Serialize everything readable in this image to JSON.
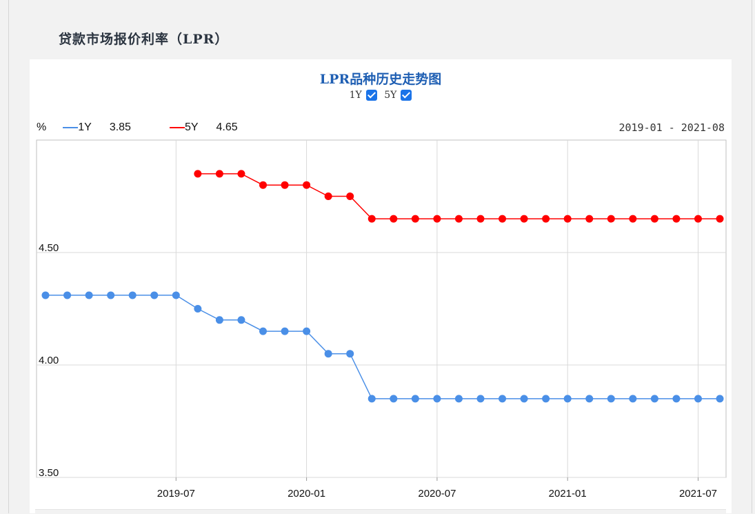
{
  "page": {
    "section_title": "贷款市场报价利率（LPR）"
  },
  "chart_header": {
    "title": "LPR品种历史走势图",
    "toggles": [
      {
        "label": "1Y",
        "checked": true
      },
      {
        "label": "5Y",
        "checked": true
      }
    ],
    "unit": "%",
    "legend": [
      {
        "name": "1Y",
        "value": "3.85",
        "color": "#4a8fe7"
      },
      {
        "name": "5Y",
        "value": "4.65",
        "color": "#ff0000"
      }
    ],
    "range": "2019-01 - 2021-08"
  },
  "chart_data": {
    "type": "line",
    "ylim": [
      3.5,
      5.0
    ],
    "yticks": [
      "3.50",
      "4.00",
      "4.50"
    ],
    "xticks": [
      "2019-07",
      "2020-01",
      "2020-07",
      "2021-01",
      "2021-07"
    ],
    "x": [
      "2019-01",
      "2019-02",
      "2019-03",
      "2019-04",
      "2019-05",
      "2019-06",
      "2019-07",
      "2019-08",
      "2019-09",
      "2019-10",
      "2019-11",
      "2019-12",
      "2020-01",
      "2020-02",
      "2020-03",
      "2020-04",
      "2020-05",
      "2020-06",
      "2020-07",
      "2020-08",
      "2020-09",
      "2020-10",
      "2020-11",
      "2020-12",
      "2021-01",
      "2021-02",
      "2021-03",
      "2021-04",
      "2021-05",
      "2021-06",
      "2021-07",
      "2021-08"
    ],
    "grid": true,
    "series": [
      {
        "name": "1Y",
        "color": "#4a8fe7",
        "values": [
          4.31,
          4.31,
          4.31,
          4.31,
          4.31,
          4.31,
          4.31,
          4.25,
          4.2,
          4.2,
          4.15,
          4.15,
          4.15,
          4.05,
          4.05,
          3.85,
          3.85,
          3.85,
          3.85,
          3.85,
          3.85,
          3.85,
          3.85,
          3.85,
          3.85,
          3.85,
          3.85,
          3.85,
          3.85,
          3.85,
          3.85,
          3.85
        ]
      },
      {
        "name": "5Y",
        "color": "#ff0000",
        "values": [
          null,
          null,
          null,
          null,
          null,
          null,
          null,
          4.85,
          4.85,
          4.85,
          4.8,
          4.8,
          4.8,
          4.75,
          4.75,
          4.65,
          4.65,
          4.65,
          4.65,
          4.65,
          4.65,
          4.65,
          4.65,
          4.65,
          4.65,
          4.65,
          4.65,
          4.65,
          4.65,
          4.65,
          4.65,
          4.65
        ]
      }
    ]
  }
}
